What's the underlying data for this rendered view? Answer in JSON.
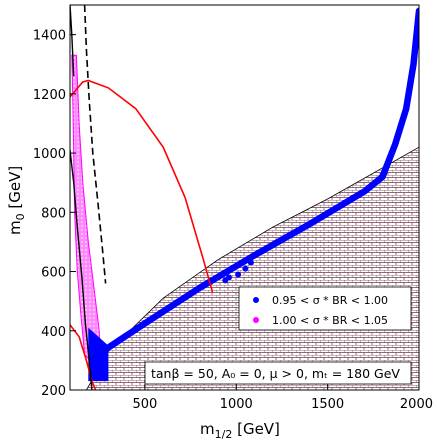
{
  "chart_data": {
    "type": "scatter",
    "xlabel": "m",
    "xlabel_sub": "1/2",
    "xlabel_unit": " [GeV]",
    "ylabel": "m",
    "ylabel_sub": "0",
    "ylabel_unit": " [GeV]",
    "xlim": [
      90,
      2000
    ],
    "ylim": [
      200,
      1500
    ],
    "x_ticks": [
      500,
      1000,
      1500,
      2000
    ],
    "y_ticks": [
      200,
      400,
      600,
      800,
      1000,
      1200,
      1400
    ],
    "legend": {
      "placement": "center-right",
      "entries": [
        {
          "label": "0.95 < σ * BR < 1.00",
          "color": "#0000ff"
        },
        {
          "label": "1.00 < σ * BR < 1.05",
          "color": "#ff00ff"
        }
      ]
    },
    "annotation": "tanβ = 50, A₀ = 0, μ > 0, mₜ = 180 GeV",
    "excluded_boundary": [
      [
        180,
        200
      ],
      [
        300,
        330
      ],
      [
        600,
        510
      ],
      [
        900,
        640
      ],
      [
        1200,
        750
      ],
      [
        1500,
        845
      ],
      [
        1800,
        950
      ],
      [
        2000,
        1020
      ]
    ],
    "series": [
      {
        "color": "#0000ff",
        "band": [
          [
            280,
            335
          ],
          [
            500,
            425
          ],
          [
            800,
            545
          ],
          [
            1100,
            655
          ],
          [
            1400,
            760
          ],
          [
            1700,
            870
          ],
          [
            1800,
            920
          ],
          [
            1870,
            1030
          ],
          [
            1930,
            1150
          ],
          [
            1970,
            1300
          ],
          [
            2000,
            1480
          ]
        ],
        "band_width": 22,
        "low_region": [
          [
            190,
            410
          ],
          [
            300,
            350
          ],
          [
            300,
            230
          ],
          [
            190,
            230
          ]
        ],
        "scatter": [
          [
            940,
            570
          ],
          [
            960,
            580
          ],
          [
            1010,
            590
          ],
          [
            1050,
            610
          ],
          [
            1080,
            630
          ]
        ]
      },
      {
        "color": "#ff00ff",
        "strip_left": [
          [
            100,
            1330
          ],
          [
            105,
            1200
          ],
          [
            110,
            1000
          ],
          [
            115,
            800
          ],
          [
            130,
            600
          ],
          [
            150,
            450
          ],
          [
            170,
            320
          ]
        ],
        "strip_right": [
          [
            125,
            1330
          ],
          [
            140,
            1100
          ],
          [
            160,
            900
          ],
          [
            190,
            700
          ],
          [
            220,
            550
          ],
          [
            250,
            400
          ],
          [
            260,
            260
          ]
        ]
      }
    ],
    "lines": {
      "red_curve": [
        [
          90,
          1190
        ],
        [
          160,
          1240
        ],
        [
          190,
          1245
        ],
        [
          300,
          1220
        ],
        [
          450,
          1150
        ],
        [
          600,
          1020
        ],
        [
          720,
          850
        ],
        [
          820,
          640
        ],
        [
          870,
          530
        ]
      ],
      "red_lower": [
        [
          90,
          420
        ],
        [
          140,
          380
        ],
        [
          180,
          300
        ],
        [
          210,
          230
        ],
        [
          230,
          200
        ]
      ],
      "black_dashed": [
        [
          170,
          1500
        ],
        [
          180,
          1350
        ],
        [
          195,
          1180
        ],
        [
          215,
          1000
        ],
        [
          245,
          820
        ],
        [
          270,
          660
        ],
        [
          285,
          560
        ]
      ],
      "black_solid": [
        [
          90,
          1010
        ],
        [
          110,
          900
        ],
        [
          130,
          750
        ],
        [
          155,
          580
        ],
        [
          175,
          420
        ],
        [
          195,
          300
        ],
        [
          210,
          200
        ]
      ],
      "black_corner": [
        [
          90,
          1500
        ],
        [
          100,
          1400
        ],
        [
          110,
          1260
        ]
      ]
    }
  }
}
